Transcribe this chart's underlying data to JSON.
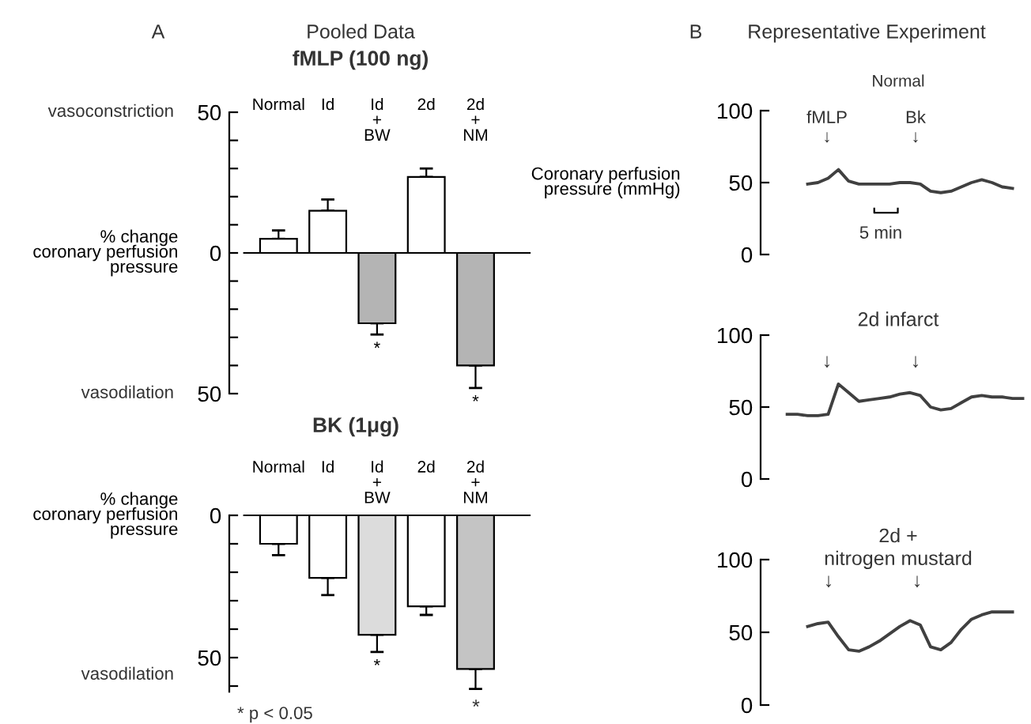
{
  "chart_data": [
    {
      "type": "bar",
      "title": "Pooled Data",
      "subtitle": "fMLP (100 ng)",
      "ylabel": "% change\ncoronary perfusion\npressure",
      "categories": [
        "Normal",
        "Id",
        "Id\n+\nBW",
        "2d",
        "2d\n+\nNM"
      ],
      "values": [
        5,
        15,
        -25,
        27,
        -40
      ],
      "errors": [
        [
          5,
          8
        ],
        [
          15,
          19
        ],
        [
          -29,
          -25
        ],
        [
          27,
          30
        ],
        [
          -48,
          -40
        ]
      ],
      "colors": [
        "#ffffff",
        "#ffffff",
        "#b4b4b4",
        "#ffffff",
        "#b4b4b4"
      ],
      "ylim": [
        -50,
        50
      ],
      "yticks": [
        {
          "value": -50,
          "label": "50"
        },
        {
          "value": -40,
          "label": null
        },
        {
          "value": -30,
          "label": null
        },
        {
          "value": -20,
          "label": null
        },
        {
          "value": -10,
          "label": null
        },
        0,
        {
          "value": 10,
          "label": null
        },
        {
          "value": 20,
          "label": null
        },
        {
          "value": 30,
          "label": null
        },
        {
          "value": 40,
          "label": null
        },
        50
      ],
      "annotations": [
        "A",
        "vasoconstriction",
        "vasodilation",
        {
          "text": "*",
          "x": "Id\n+\nBW",
          "y": -29
        },
        {
          "text": "*",
          "x": "2d\n+\nNM",
          "y": -48
        }
      ]
    },
    {
      "type": "bar",
      "title": "BK (1μg)",
      "ylabel": "% change\ncoronary perfusion\npressure",
      "categories": [
        "Normal",
        "Id",
        "Id\n+\nBW",
        "2d",
        "2d\n+\nNM"
      ],
      "values": [
        -10,
        -22,
        -42,
        -32,
        -54
      ],
      "errors": [
        [
          -14,
          -10
        ],
        [
          -28,
          -22
        ],
        [
          -48,
          -42
        ],
        [
          -35,
          -32
        ],
        [
          -61,
          -54
        ]
      ],
      "colors": [
        "#ffffff",
        "#ffffff",
        "#dcdcdc",
        "#ffffff",
        "#c4c4c4"
      ],
      "ylim": [
        -62,
        0
      ],
      "yticks": [
        {
          "value": -60,
          "label": null
        },
        {
          "value": -50,
          "label": "50"
        },
        {
          "value": -40,
          "label": null
        },
        {
          "value": -30,
          "label": null
        },
        {
          "value": -20,
          "label": null
        },
        {
          "value": -10,
          "label": null
        },
        0
      ],
      "annotations": [
        "vasodilation",
        "* p < 0.05",
        {
          "text": "*",
          "x": "Id\n+\nBW",
          "y": -48
        },
        "*"
      ]
    },
    {
      "type": "line",
      "title": "Representative Experiment",
      "subtitle": "Normal",
      "ylabel": "Coronary perfusion\npressure (mmHg)",
      "categories": [
        null,
        null,
        null,
        null,
        null,
        null,
        null,
        null,
        null,
        null,
        null,
        null,
        null,
        null,
        null,
        null,
        null,
        null,
        null,
        null,
        null,
        null,
        null,
        null
      ],
      "values": [
        null,
        null,
        49,
        50,
        53,
        59,
        51,
        49,
        49,
        49,
        49,
        50,
        50,
        49,
        44,
        43,
        44,
        47,
        50,
        52,
        50,
        47,
        46,
        null
      ],
      "color": "#404040",
      "ylim": [
        0,
        100
      ],
      "yticks": [
        0,
        50,
        100
      ],
      "tick_labels": "y",
      "annotations": [
        "B",
        "5 min",
        "fMLP\n↓",
        "Bk\n↓"
      ]
    },
    {
      "type": "line",
      "title": "2d infarct",
      "categories": [
        null,
        null,
        null,
        null,
        null,
        null,
        null,
        null,
        null,
        null,
        null,
        null,
        null,
        null,
        null,
        null,
        null,
        null,
        null,
        null,
        null,
        null,
        null,
        null
      ],
      "values": [
        45,
        45,
        44,
        44,
        45,
        66,
        60,
        54,
        55,
        56,
        57,
        59,
        60,
        58,
        50,
        48,
        49,
        53,
        57,
        58,
        57,
        57,
        56,
        56
      ],
      "color": "#404040",
      "ylim": [
        0,
        100
      ],
      "yticks": [
        0,
        50,
        100
      ],
      "tick_labels": "y",
      "annotations": [
        "↓",
        "↓"
      ]
    },
    {
      "type": "line",
      "title": "2d +\nnitrogen mustard",
      "categories": [
        null,
        null,
        null,
        null,
        null,
        null,
        null,
        null,
        null,
        null,
        null,
        null,
        null,
        null,
        null,
        null,
        null,
        null,
        null,
        null,
        null,
        null,
        null,
        null
      ],
      "values": [
        null,
        null,
        54,
        56,
        57,
        47,
        38,
        37,
        40,
        44,
        49,
        54,
        58,
        55,
        40,
        38,
        43,
        52,
        59,
        62,
        64,
        64,
        64,
        null
      ],
      "color": "#404040",
      "ylim": [
        0,
        100
      ],
      "yticks": [
        0,
        50,
        100
      ],
      "tick_labels": "y",
      "annotations": [
        "↓",
        "↓"
      ]
    }
  ]
}
